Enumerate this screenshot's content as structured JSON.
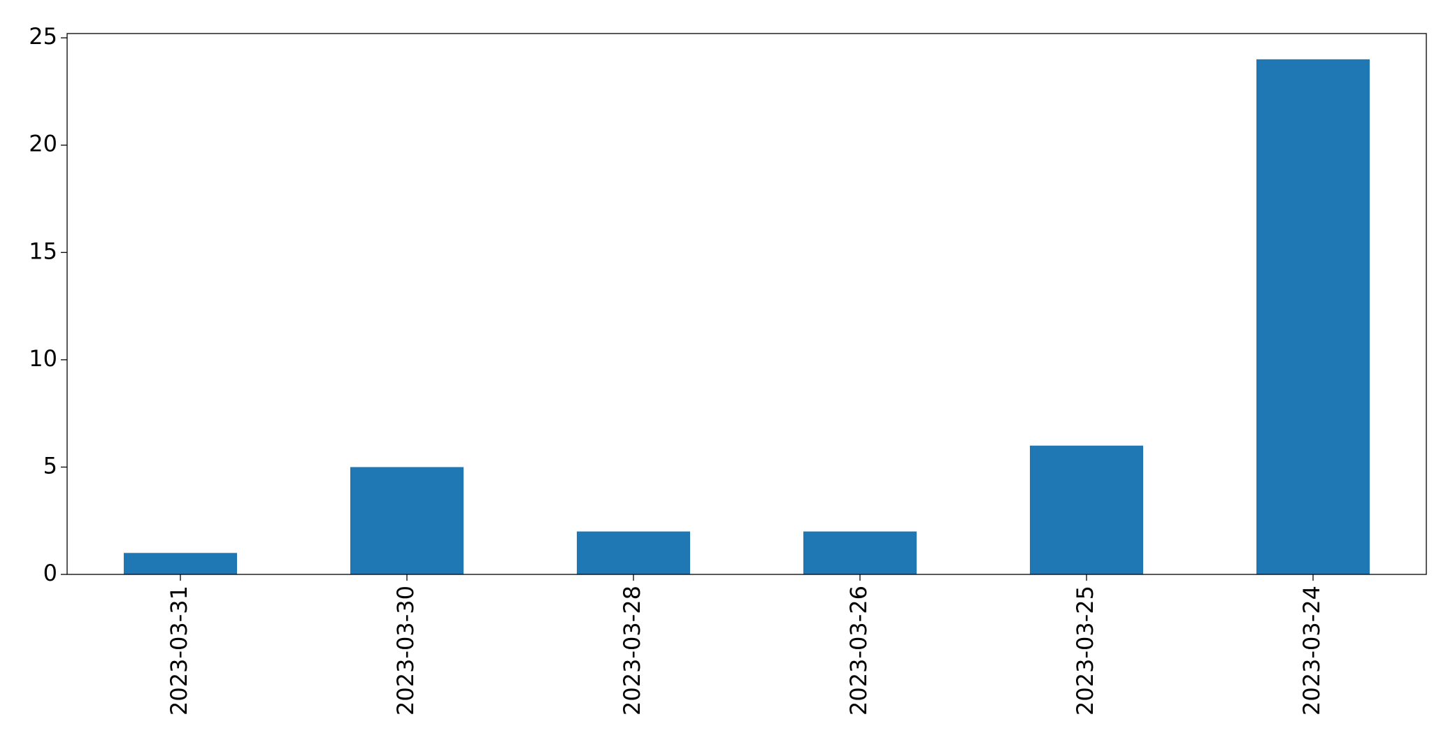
{
  "chart_data": {
    "type": "bar",
    "categories": [
      "2023-03-31",
      "2023-03-30",
      "2023-03-28",
      "2023-03-26",
      "2023-03-25",
      "2023-03-24"
    ],
    "values": [
      1,
      5,
      2,
      2,
      6,
      24
    ],
    "color": "#1f77b4",
    "ylim": [
      0,
      25.2
    ],
    "yticks": [
      0,
      5,
      10,
      15,
      20,
      25
    ],
    "grid": false
  }
}
